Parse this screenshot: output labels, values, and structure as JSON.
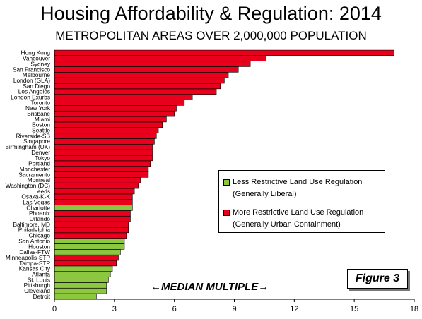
{
  "chart_data": {
    "type": "bar",
    "orientation": "horizontal",
    "title": "Housing Affordability & Regulation: 2014",
    "subtitle": "METROPOLITAN AREAS OVER 2,000,000 POPULATION",
    "xlabel": "←MEDIAN MULTIPLE→",
    "xlim": [
      0,
      18
    ],
    "xticks": [
      "0",
      "3",
      "6",
      "9",
      "12",
      "15",
      "18"
    ],
    "grid": false,
    "legend_position": "right",
    "figure_label": "Figure 3",
    "colors": {
      "less": "#8dc63f",
      "more": "#e8001c"
    },
    "legend": [
      {
        "key": "less",
        "line1": "Less Restrictive Land Use Regulation",
        "line2": "(Generally Liberal)"
      },
      {
        "key": "more",
        "line1": "More Restrictive Land Use Regulation",
        "line2": "(Generally Urban Containment)"
      }
    ],
    "categories": [
      "Hong Kong",
      "Vancouver",
      "Sydney",
      "San Francisco",
      "Melbourne",
      "London (GLA)",
      "San Diego",
      "Los Angeles",
      "London Exurbs",
      "Toronto",
      "New York",
      "Brisbane",
      "Miami",
      "Boston",
      "Seattle",
      "Riverside-SB",
      "Singapore",
      "Birmingham (UK)",
      "Denver",
      "Tokyo",
      "Portland",
      "Manchester",
      "Sacramento",
      "Montreal",
      "Washington (DC)",
      "Leeds",
      "Osaka-K-K",
      "Las Vegas",
      "Charlotte",
      "Phoenix",
      "Orlando",
      "Baltimore, MD",
      "Philadelphia",
      "Chicago",
      "San Antonio",
      "Houston",
      "Dallas-FTW",
      "Minneapolis-STP",
      "Tampa-STP",
      "Kansas City",
      "Atlanta",
      "St. Louis",
      "Pittsburgh",
      "Cleveland",
      "Detroit"
    ],
    "values": [
      17.0,
      10.6,
      9.8,
      9.2,
      8.7,
      8.5,
      8.3,
      8.1,
      6.9,
      6.5,
      6.1,
      6.0,
      5.6,
      5.4,
      5.2,
      5.1,
      5.0,
      4.9,
      4.9,
      4.9,
      4.8,
      4.7,
      4.7,
      4.3,
      4.2,
      4.0,
      3.9,
      3.9,
      3.9,
      3.8,
      3.8,
      3.7,
      3.7,
      3.6,
      3.5,
      3.5,
      3.3,
      3.2,
      3.1,
      2.9,
      2.8,
      2.7,
      2.6,
      2.6,
      2.1
    ],
    "regulation": [
      "more",
      "more",
      "more",
      "more",
      "more",
      "more",
      "more",
      "more",
      "more",
      "more",
      "more",
      "more",
      "more",
      "more",
      "more",
      "more",
      "more",
      "more",
      "more",
      "more",
      "more",
      "more",
      "more",
      "more",
      "more",
      "more",
      "more",
      "more",
      "less",
      "more",
      "more",
      "more",
      "more",
      "more",
      "less",
      "less",
      "less",
      "more",
      "more",
      "less",
      "less",
      "less",
      "less",
      "less",
      "less"
    ]
  }
}
